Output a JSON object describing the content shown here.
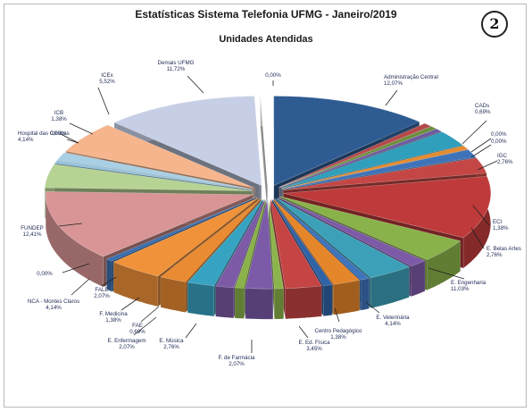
{
  "page": {
    "badge": "2"
  },
  "chart_data": {
    "type": "pie",
    "title": "Estatísticas Sistema Telefonia UFMG - Janeiro/2019",
    "subtitle": "Unidades Atendidas",
    "slices": [
      {
        "name": "Administração Central",
        "value": 12.07,
        "pct": "12,07%",
        "color": "#2e5b92"
      },
      {
        "name": "CADs",
        "value": 0.69,
        "pct": "0,69%",
        "color": "#b54a4a"
      },
      {
        "name": "",
        "value": 0.0,
        "pct": "0,00%",
        "color": "#6b8e3a"
      },
      {
        "name": "",
        "value": 0.0,
        "pct": "0,00%",
        "color": "#6b5aa0"
      },
      {
        "name": "IGC",
        "value": 2.76,
        "pct": "2,76%",
        "color": "#2f9fbc"
      },
      {
        "name": "",
        "value": 0.69,
        "pct": "",
        "color": "#e58a2e"
      },
      {
        "name": "ECI",
        "value": 1.38,
        "pct": "1,38%",
        "color": "#3f73b9"
      },
      {
        "name": "E. Belas Artes",
        "value": 2.76,
        "pct": "2,76%",
        "color": "#c44745"
      },
      {
        "name": "E. Engenharia",
        "value": 11.03,
        "pct": "11,03%",
        "color": "#bf3a3a"
      },
      {
        "name": "E. Veterinária",
        "value": 4.14,
        "pct": "4,14%",
        "color": "#8ab24a"
      },
      {
        "name": "Centro Pedagógico",
        "value": 1.38,
        "pct": "1,38%",
        "color": "#7d5aa8"
      },
      {
        "name": "E. Ed. Física",
        "value": 3.45,
        "pct": "3,45%",
        "color": "#3ca0b8"
      },
      {
        "name": "",
        "value": 0.69,
        "pct": "",
        "color": "#3f74bc"
      },
      {
        "name": "F. de Farmácia",
        "value": 2.07,
        "pct": "2,07%",
        "color": "#e6862a"
      },
      {
        "name": "",
        "value": 0.69,
        "pct": "",
        "color": "#2f62a6"
      },
      {
        "name": "E. Música",
        "value": 2.76,
        "pct": "2,76%",
        "color": "#c54444"
      },
      {
        "name": "",
        "value": 0.69,
        "pct": "",
        "color": "#8cb44c"
      },
      {
        "name": "E. Enfermagem",
        "value": 2.07,
        "pct": "2,07%",
        "color": "#7b5aa8"
      },
      {
        "name": "FAE",
        "value": 0.69,
        "pct": "0,69%",
        "color": "#8bb24a"
      },
      {
        "name": "F. Medicina",
        "value": 1.38,
        "pct": "1,38%",
        "color": "#7c5aa6"
      },
      {
        "name": "",
        "value": 2.07,
        "pct": "",
        "color": "#37a3c2"
      },
      {
        "name": "FALE",
        "value": 2.07,
        "pct": "2,07%",
        "color": "#e98b32"
      },
      {
        "name": "NCA - Montes Claros",
        "value": 4.14,
        "pct": "4,14%",
        "color": "#f0923a"
      },
      {
        "name": "",
        "value": 0.0,
        "pct": "0,00%",
        "color": "#3a6fb0"
      },
      {
        "name": "FUNDEP",
        "value": 12.41,
        "pct": "12,41%",
        "color": "#d99595"
      },
      {
        "name": "Hospital das Clínicas",
        "value": 4.14,
        "pct": "4,14%",
        "color": "#b7d394"
      },
      {
        "name": "",
        "value": 0.0,
        "pct": "0,00%",
        "color": "#96c5dd"
      },
      {
        "name": "ICB",
        "value": 1.38,
        "pct": "1,38%",
        "color": "#a9cfe4"
      },
      {
        "name": "ICEx",
        "value": 5.52,
        "pct": "5,52%",
        "color": "#f6b58c"
      },
      {
        "name": "Demais UFMG",
        "value": 11.72,
        "pct": "11,72%",
        "color": "#c6cfe6"
      },
      {
        "name": "",
        "value": 0.0,
        "pct": "0,00%",
        "color": "#ffffff"
      }
    ]
  }
}
